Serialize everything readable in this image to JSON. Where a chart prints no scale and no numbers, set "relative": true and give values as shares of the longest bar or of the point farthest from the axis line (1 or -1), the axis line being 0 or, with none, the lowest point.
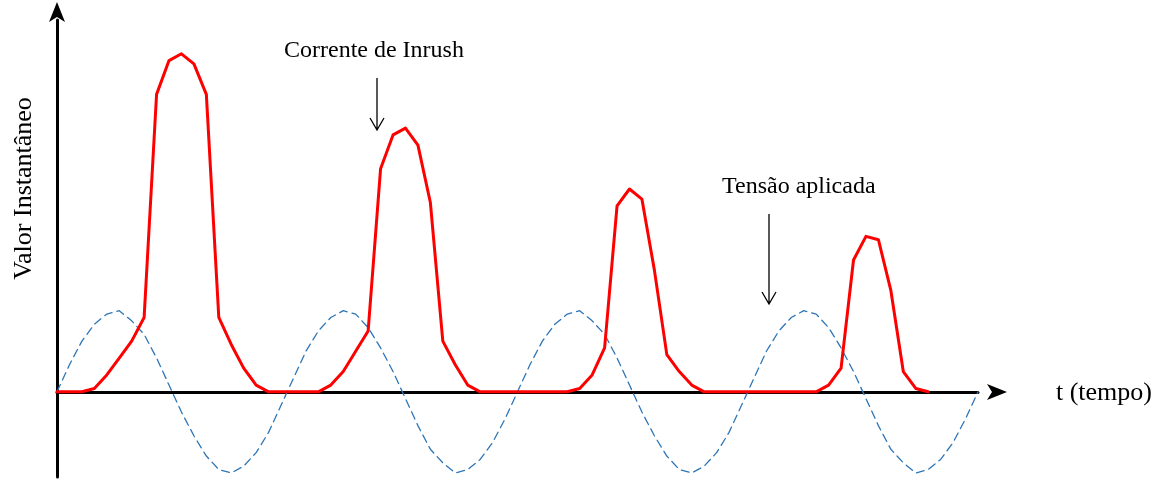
{
  "chart_data": {
    "type": "line",
    "relative": true,
    "xlabel": "t (tempo)",
    "ylabel": "Valor Instantâneo",
    "marker": "none",
    "categories": [
      null,
      null,
      null,
      null,
      null,
      null,
      null,
      null,
      null,
      null,
      null,
      null,
      null,
      null,
      null,
      null,
      null,
      null,
      null,
      null,
      null,
      null,
      null,
      null,
      null,
      null,
      null,
      null,
      null,
      null,
      null,
      null,
      null,
      null,
      null,
      null,
      null,
      null,
      null,
      null,
      null,
      null,
      null,
      null,
      null,
      null,
      null,
      null,
      null,
      null,
      null,
      null,
      null,
      null,
      null,
      null,
      null,
      null,
      null,
      null,
      null,
      null,
      null,
      null,
      null,
      null,
      null,
      null,
      null,
      null,
      null,
      null,
      null,
      null,
      null
    ],
    "series": [
      {
        "color": "#2e75b6",
        "line_style": "dashed",
        "values": [
          0,
          0.08,
          0.15,
          0.2,
          0.23,
          0.24,
          0.21,
          0.17,
          0.1,
          0.02,
          -0.06,
          -0.13,
          -0.19,
          -0.23,
          -0.24,
          -0.22,
          -0.18,
          -0.12,
          -0.04,
          0.04,
          0.12,
          0.18,
          0.22,
          0.24,
          0.23,
          0.19,
          0.13,
          0.06,
          -0.02,
          -0.1,
          -0.17,
          -0.21,
          -0.24,
          -0.23,
          -0.2,
          -0.15,
          -0.08,
          0,
          0.08,
          0.15,
          0.2,
          0.23,
          0.24,
          0.21,
          0.17,
          0.1,
          0.02,
          -0.06,
          -0.13,
          -0.19,
          -0.23,
          -0.24,
          -0.22,
          -0.18,
          -0.12,
          -0.04,
          0.04,
          0.12,
          0.18,
          0.22,
          0.24,
          0.23,
          0.19,
          0.13,
          0.06,
          -0.02,
          -0.1,
          -0.17,
          -0.21,
          -0.24,
          -0.23,
          -0.2,
          -0.15,
          -0.08,
          0
        ]
      },
      {
        "color": "#ff0000",
        "line_style": "solid",
        "values": [
          0,
          0,
          0,
          0.01,
          0.05,
          0.1,
          0.15,
          0.22,
          0.88,
          0.98,
          1.0,
          0.97,
          0.88,
          0.22,
          0.14,
          0.07,
          0.02,
          0,
          0,
          0,
          0,
          0,
          0.02,
          0.06,
          0.12,
          0.18,
          0.66,
          0.76,
          0.78,
          0.73,
          0.56,
          0.15,
          0.08,
          0.02,
          0,
          0,
          0,
          0,
          0,
          0,
          0,
          0,
          0.01,
          0.05,
          0.13,
          0.55,
          0.6,
          0.57,
          0.36,
          0.11,
          0.06,
          0.02,
          0,
          0,
          0,
          0,
          0,
          0,
          0,
          0,
          0,
          0,
          0.02,
          0.07,
          0.39,
          0.46,
          0.45,
          0.3,
          0.06,
          0.01,
          0,
          null,
          null,
          null,
          null
        ]
      }
    ],
    "annotations": [
      "Corrente de Inrush",
      "Tensão aplicada"
    ]
  }
}
